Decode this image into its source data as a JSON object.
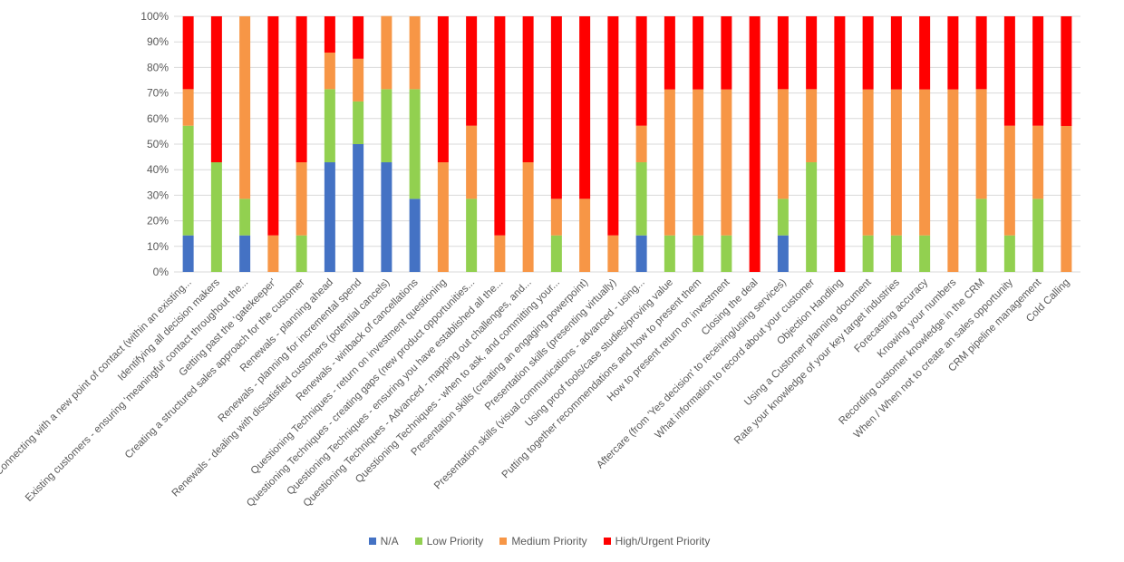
{
  "chart_data": {
    "type": "bar",
    "stacked": true,
    "percent": true,
    "categories": [
      "Connecting with a new point of contact (within an existing...",
      "Identifying all decision makers",
      "Existing customers - ensuring 'meaningful' contact throughout the...",
      "Getting past the 'gatekeeper'",
      "Creating a structured sales approach for the customer",
      "Renewals - planning ahead",
      "Renewals - planning for incremental spend",
      "Renewals - dealing with dissatisfied customers (potential cancels)",
      "Renewals - winback of cancellations",
      "Questioning Techniques - return on investment questioning",
      "Questioning Techniques - creating gaps (new product opportunities...",
      "Questioning Techniques - ensuring you have established all the...",
      "Questioning Techniques - Advanced - mapping out challenges, and...",
      "Questioning Techniques - when to ask, and committing your...",
      "Presentation skills (creating an engaging powerpoint)",
      "Presentation skills (presenting virtually)",
      "Presentation skills (visual communications - advanced - using...",
      "Using proof tools/case studies/proving value",
      "Putting together recommendations and how to present them",
      "How to present return on investment",
      "Closing the deal",
      "Aftercare (from 'Yes decision' to receiving/using services)",
      "What information to record about your customer",
      "Objection Handling",
      "Using a Customer planning document",
      "Rate your knowledge of your key target industries",
      "Forecasting accuracy",
      "Knowing your numbers",
      "Recording customer knowledge in the CRM",
      "When / When not to create an sales opportunity",
      "CRM pipeline management",
      "Cold Calling"
    ],
    "series": [
      {
        "name": "N/A",
        "color": "#4472C4",
        "values": [
          14.3,
          0,
          14.3,
          0,
          0,
          42.9,
          50,
          42.9,
          28.6,
          0,
          0,
          0,
          0,
          0,
          0,
          0,
          14.3,
          0,
          0,
          0,
          0,
          14.3,
          0,
          0,
          0,
          0,
          0,
          0,
          0,
          0,
          0,
          0
        ]
      },
      {
        "name": "Low Priority",
        "color": "#92D050",
        "values": [
          42.9,
          42.9,
          14.3,
          0,
          14.3,
          28.6,
          16.7,
          28.6,
          42.9,
          0,
          28.6,
          0,
          0,
          14.3,
          0,
          0,
          28.6,
          14.3,
          14.3,
          14.3,
          0,
          14.3,
          42.9,
          0,
          14.3,
          14.3,
          14.3,
          0,
          28.6,
          14.3,
          28.6,
          0
        ]
      },
      {
        "name": "Medium Priority",
        "color": "#F79646",
        "values": [
          14.3,
          0,
          71.4,
          14.3,
          28.6,
          14.3,
          16.7,
          28.6,
          28.5,
          42.9,
          28.6,
          14.3,
          42.9,
          14.3,
          28.6,
          14.3,
          14.3,
          57.1,
          57.1,
          57.1,
          0,
          42.9,
          28.6,
          0,
          57.1,
          57.1,
          57.1,
          71.4,
          42.9,
          42.9,
          28.6,
          57.1
        ]
      },
      {
        "name": "High/Urgent Priority",
        "color": "#FF0000",
        "values": [
          28.5,
          57.1,
          0,
          85.7,
          57.1,
          14.2,
          16.6,
          0,
          0,
          57.1,
          42.8,
          85.7,
          57.1,
          71.4,
          71.4,
          85.7,
          42.8,
          28.6,
          28.6,
          28.6,
          100,
          28.5,
          28.5,
          100,
          28.6,
          28.6,
          28.6,
          28.6,
          28.5,
          42.8,
          42.8,
          42.9
        ]
      }
    ],
    "y_ticks": [
      "0%",
      "10%",
      "20%",
      "30%",
      "40%",
      "50%",
      "60%",
      "70%",
      "80%",
      "90%",
      "100%"
    ],
    "ylim": [
      0,
      100
    ],
    "grid": true,
    "legend_position": "bottom"
  }
}
